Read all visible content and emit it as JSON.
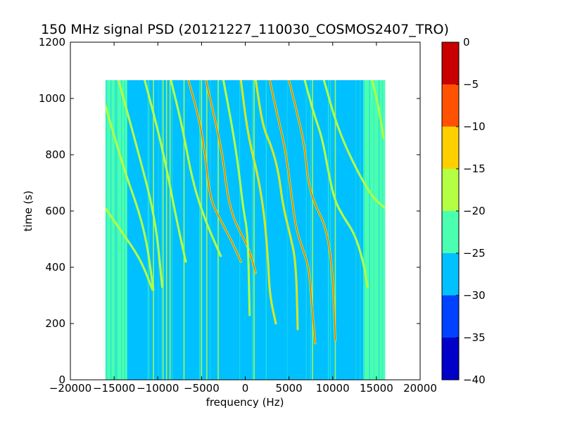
{
  "chart_data": {
    "type": "heatmap",
    "title": "150 MHz signal PSD (20121227_110030_COSMOS2407_TRO)",
    "xlabel": "frequency (Hz)",
    "ylabel": "time (s)",
    "xlim": [
      -20000,
      20000
    ],
    "ylim": [
      0,
      1200
    ],
    "xticks": [
      -20000,
      -15000,
      -10000,
      -5000,
      0,
      5000,
      10000,
      15000,
      20000
    ],
    "xtick_labels": [
      "−20000",
      "−15000",
      "−10000",
      "−5000",
      "0",
      "5000",
      "10000",
      "15000",
      "20000"
    ],
    "yticks": [
      0,
      200,
      400,
      600,
      800,
      1000,
      1200
    ],
    "ytick_labels": [
      "0",
      "200",
      "400",
      "600",
      "800",
      "1000",
      "1200"
    ],
    "data_extent": {
      "x": [
        -16000,
        16000
      ],
      "y": [
        0,
        1065
      ]
    },
    "grid": false,
    "colorbar": {
      "range": [
        -40,
        0
      ],
      "levels": [
        -40,
        -35,
        -30,
        -25,
        -20,
        -15,
        -10,
        -5,
        0
      ],
      "tick_labels": [
        "−40",
        "−35",
        "−30",
        "−25",
        "−20",
        "−15",
        "−10",
        "−5",
        "0"
      ],
      "colors": [
        "#0000c8",
        "#0042ff",
        "#00c0ff",
        "#4affb0",
        "#b4ff42",
        "#ffd000",
        "#ff5200",
        "#c80000"
      ]
    },
    "background_levels": {
      "edge_band": -22.5,
      "center": -27.5
    },
    "edge_band_hz": [
      [
        -16000,
        -13500
      ],
      [
        13500,
        16000
      ]
    ],
    "vertical_lines_hz": [
      -10500,
      -9400,
      -9000,
      -8600,
      -7000,
      -5000,
      -4400,
      -3100,
      1000,
      7700,
      10300
    ],
    "traces": [
      {
        "points": [
          [
            -16000,
            975
          ],
          [
            -14000,
            760
          ],
          [
            -11500,
            540
          ],
          [
            -10500,
            320
          ]
        ],
        "level": -17.5
      },
      {
        "points": [
          [
            -16000,
            610
          ],
          [
            -14000,
            520
          ],
          [
            -12000,
            430
          ],
          [
            -10600,
            320
          ]
        ],
        "level": -17.5
      },
      {
        "points": [
          [
            -14500,
            1065
          ],
          [
            -12500,
            840
          ],
          [
            -10300,
            580
          ],
          [
            -9500,
            330
          ]
        ],
        "level": -17.5
      },
      {
        "points": [
          [
            -11500,
            1065
          ],
          [
            -9500,
            830
          ],
          [
            -7800,
            560
          ],
          [
            -6800,
            420
          ]
        ],
        "level": -17.5
      },
      {
        "points": [
          [
            -8500,
            1065
          ],
          [
            -7200,
            900
          ],
          [
            -6000,
            700
          ],
          [
            -4500,
            560
          ],
          [
            -2800,
            440
          ]
        ],
        "level": -17.5
      },
      {
        "points": [
          [
            -6500,
            1065
          ],
          [
            -5200,
            920
          ],
          [
            -4500,
            780
          ],
          [
            -4000,
            640
          ],
          [
            -2700,
            560
          ],
          [
            -1500,
            490
          ],
          [
            -500,
            420
          ]
        ],
        "level": -7.5
      },
      {
        "points": [
          [
            -4500,
            1065
          ],
          [
            -3500,
            930
          ],
          [
            -2600,
            800
          ],
          [
            -2000,
            650
          ],
          [
            -1200,
            560
          ],
          [
            400,
            470
          ],
          [
            1200,
            380
          ]
        ],
        "level": -7.5
      },
      {
        "points": [
          [
            -2500,
            1065
          ],
          [
            -1500,
            900
          ],
          [
            -800,
            760
          ],
          [
            -200,
            600
          ],
          [
            300,
            520
          ],
          [
            500,
            230
          ]
        ],
        "level": -17.5
      },
      {
        "points": [
          [
            -500,
            1065
          ],
          [
            300,
            870
          ],
          [
            1500,
            720
          ],
          [
            2200,
            580
          ],
          [
            2600,
            430
          ],
          [
            2800,
            300
          ],
          [
            3500,
            200
          ]
        ],
        "level": -12.5
      },
      {
        "points": [
          [
            2800,
            1065
          ],
          [
            3600,
            950
          ],
          [
            4600,
            820
          ],
          [
            5300,
            650
          ],
          [
            5800,
            540
          ],
          [
            6500,
            470
          ],
          [
            7300,
            400
          ],
          [
            7600,
            270
          ],
          [
            8000,
            130
          ]
        ],
        "level": -7.5
      },
      {
        "points": [
          [
            1200,
            1065
          ],
          [
            2000,
            900
          ],
          [
            3000,
            830
          ],
          [
            3800,
            740
          ],
          [
            4300,
            620
          ],
          [
            5100,
            520
          ],
          [
            5800,
            420
          ],
          [
            6000,
            180
          ]
        ],
        "level": -12.5
      },
      {
        "points": [
          [
            5000,
            1065
          ],
          [
            6000,
            940
          ],
          [
            6800,
            830
          ],
          [
            7200,
            700
          ],
          [
            8000,
            620
          ],
          [
            9000,
            560
          ],
          [
            9600,
            480
          ],
          [
            10000,
            370
          ],
          [
            10300,
            140
          ]
        ],
        "level": -7.5
      },
      {
        "points": [
          [
            6800,
            1065
          ],
          [
            7800,
            950
          ],
          [
            8800,
            860
          ],
          [
            9500,
            740
          ],
          [
            10200,
            640
          ],
          [
            11200,
            580
          ],
          [
            12500,
            520
          ],
          [
            13500,
            420
          ],
          [
            14000,
            330
          ]
        ],
        "level": -17.5
      },
      {
        "points": [
          [
            9000,
            1065
          ],
          [
            10500,
            900
          ],
          [
            12500,
            760
          ],
          [
            14500,
            650
          ],
          [
            16000,
            610
          ]
        ],
        "level": -17.5
      },
      {
        "points": [
          [
            14500,
            1065
          ],
          [
            15200,
            980
          ],
          [
            15800,
            860
          ]
        ],
        "level": -17.5
      }
    ]
  }
}
